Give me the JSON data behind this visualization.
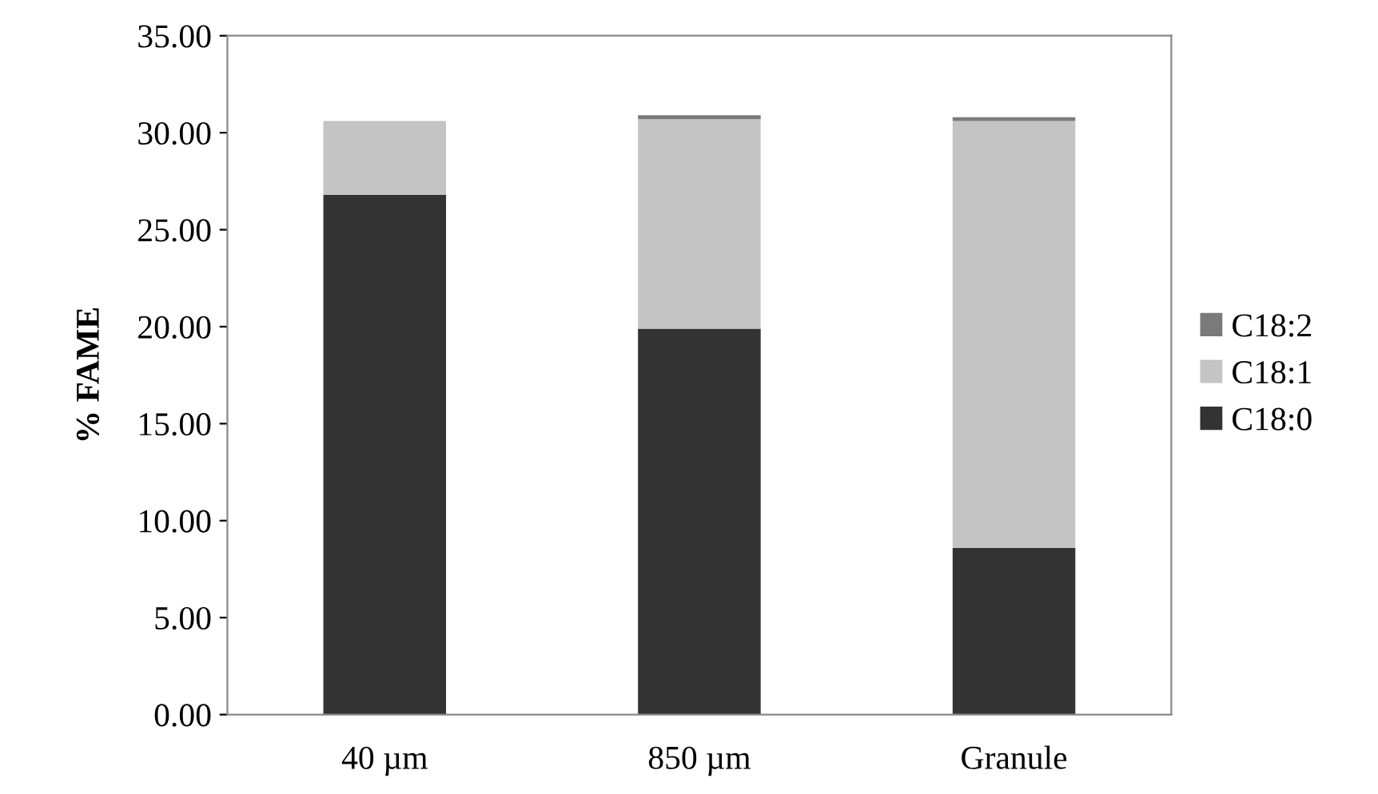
{
  "chart_data": {
    "type": "bar",
    "stacked": true,
    "ylabel": "% FAME",
    "categories": [
      "40 µm",
      "850 µm",
      "Granule"
    ],
    "series": [
      {
        "name": "C18:0",
        "color": "#333333",
        "values": [
          26.8,
          19.9,
          8.6
        ]
      },
      {
        "name": "C18:1",
        "color": "#c4c4c4",
        "values": [
          3.8,
          10.8,
          22.0
        ]
      },
      {
        "name": "C18:2",
        "color": "#7a7a7a",
        "values": [
          0,
          0.2,
          0.2
        ]
      }
    ],
    "ylim": [
      0,
      35
    ],
    "yticks": [
      {
        "value": 0,
        "label": "0.00"
      },
      {
        "value": 5,
        "label": "5.00"
      },
      {
        "value": 10,
        "label": "10.00"
      },
      {
        "value": 15,
        "label": "15.00"
      },
      {
        "value": 20,
        "label": "20.00"
      },
      {
        "value": 25,
        "label": "25.00"
      },
      {
        "value": 30,
        "label": "30.00"
      },
      {
        "value": 35,
        "label": "35.00"
      }
    ],
    "grid": false,
    "legend": "right"
  }
}
